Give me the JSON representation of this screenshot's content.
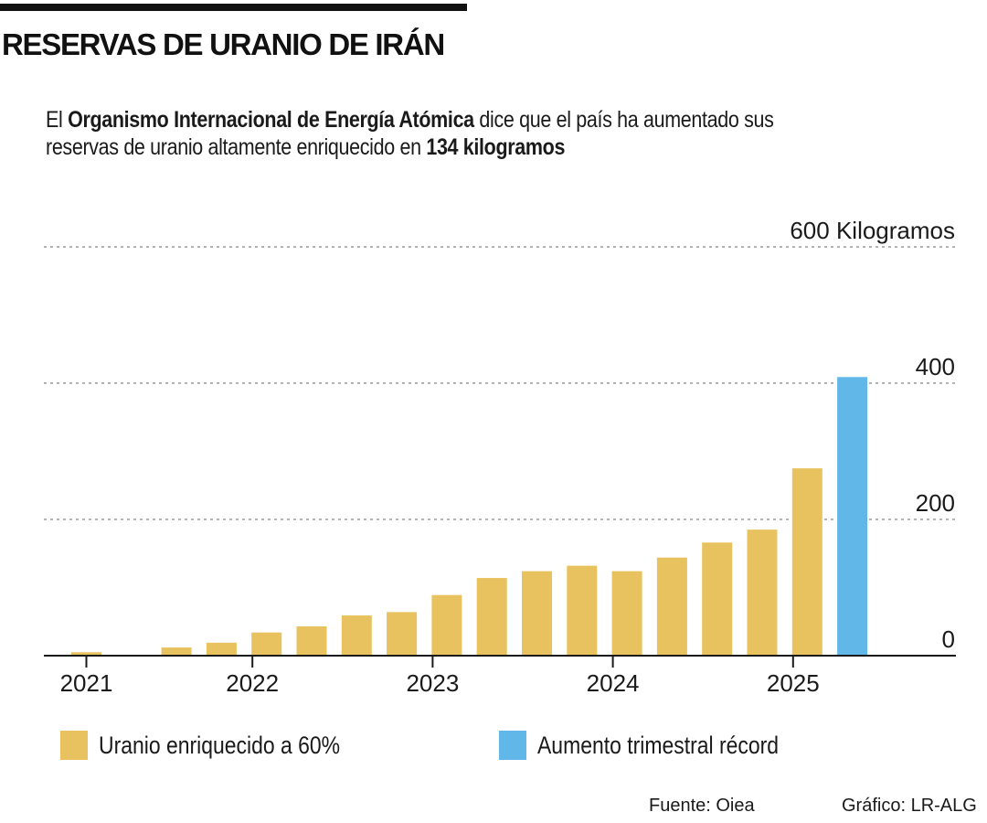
{
  "title": "RESERVAS DE URANIO DE IRÁN",
  "intro": {
    "l1_a": "El ",
    "l1_b": "Organismo Internacional de Energía Atómica",
    "l1_c": " dice que el país ha aumentado sus",
    "l2_a": "reservas de uranio altamente enriquecido en ",
    "l2_b": "134 kilogramos"
  },
  "colors": {
    "gold": "#E8C25E",
    "blue": "#61B8E8",
    "axis": "#1a1a1a",
    "grid": "#9a9a9a"
  },
  "chart_data": {
    "type": "bar",
    "ylim": [
      0,
      600
    ],
    "yticks": [
      {
        "value": 600,
        "label": "600 Kilogramos"
      },
      {
        "value": 400,
        "label": "400"
      },
      {
        "value": 200,
        "label": "200"
      },
      {
        "value": 0,
        "label": "0"
      }
    ],
    "grid": true,
    "xticks": [
      "2021",
      "2022",
      "2023",
      "2024",
      "2025"
    ],
    "series": [
      {
        "name": "Uranio enriquecido a 60%",
        "color": "#E8C25E",
        "values": [
          5,
          0,
          12,
          19,
          34,
          43,
          59,
          64,
          89,
          114,
          124,
          132,
          124,
          144,
          166,
          185,
          275
        ]
      },
      {
        "name": "Aumento trimestral récord",
        "color": "#61B8E8",
        "values": [
          0,
          0,
          0,
          0,
          0,
          0,
          0,
          0,
          0,
          0,
          0,
          0,
          0,
          0,
          0,
          0,
          0,
          409
        ]
      }
    ],
    "legend": "bottom"
  },
  "footer": {
    "source": "Fuente:  Oiea",
    "credit": "Gráfico: LR-ALG"
  }
}
